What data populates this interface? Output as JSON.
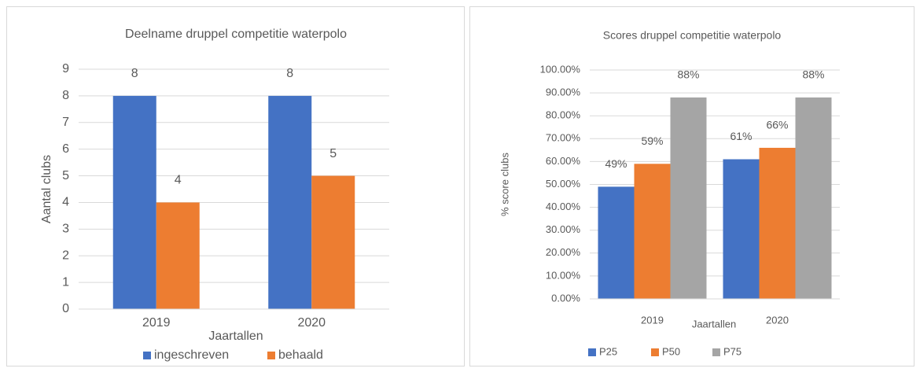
{
  "chart_data": [
    {
      "type": "bar",
      "title": "Deelname druppel competitie waterpolo",
      "categories": [
        "2019",
        "2020"
      ],
      "series": [
        {
          "name": "ingeschreven",
          "color": "#4472c4",
          "values": [
            8,
            8
          ]
        },
        {
          "name": "behaald",
          "color": "#ed7d31",
          "values": [
            4,
            5
          ]
        }
      ],
      "ylim": [
        0,
        9
      ],
      "yticks": [
        0,
        1,
        2,
        3,
        4,
        5,
        6,
        7,
        8,
        9
      ],
      "ylabel": "Aantal clubs",
      "xlabel": "Jaartallen",
      "grid": true,
      "legend": "bottom"
    },
    {
      "type": "bar",
      "title": "Scores druppel competitie waterpolo",
      "categories": [
        "2019",
        "2020"
      ],
      "series": [
        {
          "name": "P25",
          "color": "#4472c4",
          "values": [
            49,
            61
          ],
          "value_labels": [
            "49%",
            "61%"
          ]
        },
        {
          "name": "P50",
          "color": "#ed7d31",
          "values": [
            59,
            66
          ],
          "value_labels": [
            "59%",
            "66%"
          ]
        },
        {
          "name": "P75",
          "color": "#a5a5a5",
          "values": [
            88,
            88
          ],
          "value_labels": [
            "88%",
            "88%"
          ]
        }
      ],
      "ylim": [
        0,
        100
      ],
      "yticks": [
        {
          "value": 0,
          "label": "0.00%"
        },
        {
          "value": 10,
          "label": "10.00%"
        },
        {
          "value": 20,
          "label": "20.00%"
        },
        {
          "value": 30,
          "label": "30.00%"
        },
        {
          "value": 40,
          "label": "40.00%"
        },
        {
          "value": 50,
          "label": "50.00%"
        },
        {
          "value": 60,
          "label": "60.00%"
        },
        {
          "value": 70,
          "label": "70.00%"
        },
        {
          "value": 80,
          "label": "80.00%"
        },
        {
          "value": 90,
          "label": "90.00%"
        },
        {
          "value": 100,
          "label": "100.00%"
        }
      ],
      "ylabel": "% score clubs",
      "xlabel": "Jaartallen",
      "grid": true,
      "legend": "bottom"
    }
  ]
}
